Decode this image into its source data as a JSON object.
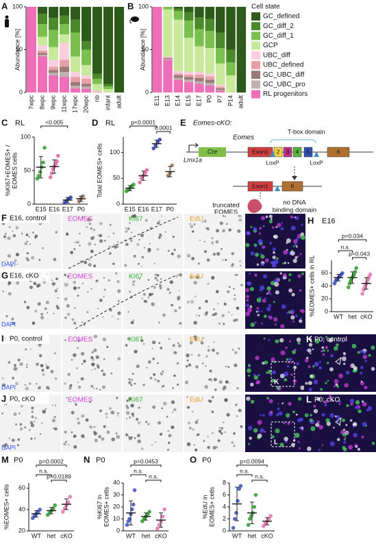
{
  "chart_data": [
    {
      "type": "stacked",
      "letter": "A",
      "ylabel": "Abundance [%]",
      "categories": [
        "7wpc",
        "8wpc",
        "9wpc",
        "11wpc",
        "17wpc",
        "20wpc",
        "nb",
        "infant",
        "adult"
      ],
      "ylim": [
        0,
        100
      ],
      "yticks": [
        0,
        50,
        100
      ],
      "series": [
        {
          "color": "#2d5a1b",
          "values": [
            0,
            8,
            13,
            10,
            15,
            40,
            78,
            90,
            100
          ]
        },
        {
          "color": "#4a8a2a",
          "values": [
            0,
            12,
            14,
            10,
            15,
            10,
            6,
            3,
            0
          ]
        },
        {
          "color": "#7bbf4f",
          "values": [
            0,
            15,
            20,
            12,
            28,
            18,
            6,
            3,
            0
          ]
        },
        {
          "color": "#c8e89a",
          "values": [
            0,
            10,
            15,
            10,
            18,
            12,
            8,
            4,
            0
          ]
        },
        {
          "color": "#f8cfdc",
          "values": [
            0,
            6,
            8,
            20,
            6,
            4,
            1,
            0,
            0
          ]
        },
        {
          "color": "#e8a0a8",
          "values": [
            0,
            3,
            4,
            8,
            6,
            6,
            1,
            0,
            0
          ]
        },
        {
          "color": "#9a7a78",
          "values": [
            0,
            2,
            3,
            6,
            4,
            3,
            0,
            0,
            0
          ]
        },
        {
          "color": "#c0b0b0",
          "values": [
            0,
            2,
            3,
            6,
            3,
            3,
            0,
            0,
            0
          ]
        },
        {
          "color": "#ee6fb8",
          "values": [
            100,
            42,
            20,
            18,
            5,
            4,
            0,
            0,
            0
          ]
        }
      ]
    },
    {
      "type": "stacked",
      "letter": "B",
      "ylabel": "Abundance [%]",
      "legend_title": "Cell state",
      "categories": [
        "E11",
        "E13",
        "E14",
        "E15",
        "E17",
        "P0",
        "P7",
        "P14",
        "adult"
      ],
      "ylim": [
        0,
        100
      ],
      "yticks": [
        0,
        50,
        100
      ],
      "series": [
        {
          "name": "GC_defined",
          "color": "#2d5a1b",
          "values": [
            0,
            0,
            2,
            6,
            12,
            14,
            30,
            50,
            100
          ]
        },
        {
          "name": "GC_diff_2",
          "color": "#4a8a2a",
          "values": [
            0,
            0,
            3,
            10,
            14,
            14,
            18,
            15,
            0
          ]
        },
        {
          "name": "GC_diff_1",
          "color": "#7bbf4f",
          "values": [
            0,
            3,
            10,
            20,
            20,
            20,
            18,
            15,
            0
          ]
        },
        {
          "name": "GCP",
          "color": "#c8e89a",
          "values": [
            0,
            55,
            60,
            40,
            30,
            30,
            25,
            20,
            0
          ]
        },
        {
          "name": "UBC_diff",
          "color": "#f8cfdc",
          "values": [
            0,
            1,
            3,
            3,
            3,
            3,
            2,
            0,
            0
          ]
        },
        {
          "name": "UBC_defined",
          "color": "#e8a0a8",
          "values": [
            0,
            1,
            2,
            3,
            4,
            4,
            2,
            0,
            0
          ]
        },
        {
          "name": "GC_UBC_diff",
          "color": "#9a7a78",
          "values": [
            0,
            1,
            3,
            3,
            4,
            4,
            2,
            0,
            0
          ]
        },
        {
          "name": "GC_UBC_pro",
          "color": "#c0b0b0",
          "values": [
            0,
            1,
            2,
            3,
            3,
            3,
            1,
            0,
            0
          ]
        },
        {
          "name": "RL progenitors",
          "color": "#ee6fb8",
          "values": [
            100,
            38,
            15,
            12,
            10,
            8,
            2,
            0,
            0
          ]
        }
      ]
    },
    {
      "type": "dotplot",
      "letter": "C",
      "title": "RL",
      "ylabel": [
        "%KI67+EOMES+ /",
        "EOMES cells"
      ],
      "categories": [
        "E15",
        "E16",
        "E17",
        "P0"
      ],
      "colors": [
        "#2a9a2a",
        "#e0609a",
        "#2a3ab0",
        "#a07050"
      ],
      "points": [
        [
          38,
          42,
          48,
          55,
          62,
          84
        ],
        [
          40,
          46,
          52,
          56,
          60,
          64,
          72
        ],
        [
          2,
          5,
          8,
          10
        ],
        [
          4,
          8,
          12
        ]
      ],
      "mean": [
        55,
        56,
        6,
        8
      ],
      "sd": [
        16,
        10,
        4,
        4
      ],
      "ylim": [
        0,
        100
      ],
      "yticks": [
        0,
        50,
        100
      ],
      "annotations": [
        "<0.005"
      ]
    },
    {
      "type": "dotplot",
      "letter": "D",
      "title": "RL",
      "ylabel": [
        "Total EOMES+ cells"
      ],
      "categories": [
        "E15",
        "E16",
        "E17",
        "P0"
      ],
      "colors": [
        "#2a9a2a",
        "#e0609a",
        "#2a3ab0",
        "#a07050"
      ],
      "points": [
        [
          25,
          28,
          31,
          35,
          38
        ],
        [
          42,
          50,
          55,
          60,
          66
        ],
        [
          108,
          114,
          120,
          125
        ],
        [
          55,
          60,
          75
        ]
      ],
      "mean": [
        31,
        55,
        117,
        63
      ],
      "sd": [
        5,
        9,
        7,
        10
      ],
      "ylim": [
        0,
        130
      ],
      "yticks": [
        0,
        50,
        100
      ],
      "annotations": [
        "p<0.0001",
        "0.0001"
      ]
    },
    {
      "type": "dotplot",
      "letter": "H",
      "title": "E16",
      "ylabel": [
        "%EOMES+ cells in RL"
      ],
      "categories": [
        "WT",
        "het",
        "cKO"
      ],
      "colors": [
        "#3a50c0",
        "#2a9a2a",
        "#e070b0"
      ],
      "points": [
        [
          44,
          48,
          50,
          52,
          54,
          56,
          58,
          60
        ],
        [
          38,
          44,
          48,
          52,
          55,
          58,
          62,
          68
        ],
        [
          28,
          34,
          38,
          42,
          45,
          50,
          54,
          58
        ]
      ],
      "mean": [
        53,
        53,
        44
      ],
      "sd": [
        5,
        9,
        9
      ],
      "ylim": [
        0,
        80
      ],
      "yticks": [
        0,
        20,
        40,
        60
      ],
      "annotations": [
        "p=0.034",
        "n.s.",
        "p=0.043"
      ]
    },
    {
      "type": "dotplot",
      "letter": "M",
      "title": "P0",
      "ylabel": [
        "%EOMES+ cells"
      ],
      "categories": [
        "WT",
        "het",
        "cKO"
      ],
      "colors": [
        "#3a50c0",
        "#2a9a2a",
        "#e070b0"
      ],
      "points": [
        [
          32,
          34,
          36,
          38,
          40
        ],
        [
          35,
          37,
          39,
          41,
          44
        ],
        [
          38,
          41,
          44,
          47,
          52
        ]
      ],
      "mean": [
        36,
        39,
        45
      ],
      "sd": [
        3,
        3,
        5
      ],
      "ylim": [
        20,
        65
      ],
      "yticks": [
        20,
        40,
        60
      ],
      "annotations": [
        "p=0.0002",
        "n.s.",
        "p=0.0189"
      ]
    },
    {
      "type": "dotplot",
      "letter": "N",
      "title": "P0",
      "ylabel": [
        "%KI67 in",
        "EOMES+ cells"
      ],
      "categories": [
        "WT",
        "het",
        "cKO"
      ],
      "colors": [
        "#3a50c0",
        "#2a9a2a",
        "#e070b0"
      ],
      "points": [
        [
          5,
          8,
          10,
          14,
          18,
          22,
          34
        ],
        [
          8,
          10,
          12,
          14,
          16
        ],
        [
          2,
          5,
          8,
          12,
          18
        ]
      ],
      "mean": [
        15,
        12,
        9
      ],
      "sd": [
        10,
        3,
        6
      ],
      "ylim": [
        0,
        40
      ],
      "yticks": [
        0,
        10,
        20,
        30,
        40
      ],
      "annotations": [
        "p=0.0453",
        "n.s.",
        "n.s."
      ]
    },
    {
      "type": "dotplot",
      "letter": "O",
      "title": "P0",
      "ylabel": [
        "%EdU in",
        "EOMES+ cells"
      ],
      "categories": [
        "WT",
        "het",
        "cKO"
      ],
      "colors": [
        "#3a50c0",
        "#2a9a2a",
        "#e070b0"
      ],
      "points": [
        [
          0.5,
          2,
          3,
          5,
          7,
          7.5
        ],
        [
          1,
          2,
          2.5,
          3,
          4,
          6
        ],
        [
          0.8,
          1.2,
          1.6,
          2,
          2.5
        ]
      ],
      "mean": [
        4.5,
        3,
        1.6
      ],
      "sd": [
        2.8,
        1.8,
        0.6
      ],
      "ylim": [
        0,
        8
      ],
      "yticks": [
        0,
        2,
        4,
        6,
        8
      ],
      "annotations": [
        "p=0.0094",
        "n.s.",
        "n.s."
      ]
    }
  ],
  "diagram": {
    "letter": "E",
    "title": "Eomes-cKO:",
    "gene": "Eomes",
    "domain": "T-box domain",
    "driver": "Lmx1a",
    "cre": "Cre",
    "exons": [
      "Exon1",
      "2",
      "3",
      "4",
      "5",
      "6"
    ],
    "loxp": [
      "LoxP",
      "LoxP"
    ],
    "deleted": [
      "Exon1",
      "6"
    ],
    "protein": [
      "truncated",
      "EOMES"
    ],
    "note": [
      "no DNA",
      "binding domain"
    ]
  },
  "images": [
    {
      "letter": "F",
      "label": "E16, control",
      "channels": [
        "EOMES",
        "KI67",
        "EdU"
      ],
      "dapi": "DAPI"
    },
    {
      "letter": "G",
      "label": "E16, cKO",
      "channels": [
        "EOMES",
        "KI67",
        "EdU"
      ],
      "dapi": "DAPI"
    },
    {
      "letter": "I",
      "label": "P0, control",
      "channels": [
        "EOMES",
        "KI67",
        "EdU"
      ],
      "dapi": "DAPI",
      "inset": "K"
    },
    {
      "letter": "J",
      "label": "P0, cKO",
      "channels": [
        "EOMES",
        "KI67",
        "EdU"
      ],
      "dapi": "DAPI",
      "inset": "L"
    },
    {
      "letter": "K",
      "label": "P0; control"
    },
    {
      "letter": "L",
      "label": "P0; cKO"
    }
  ]
}
